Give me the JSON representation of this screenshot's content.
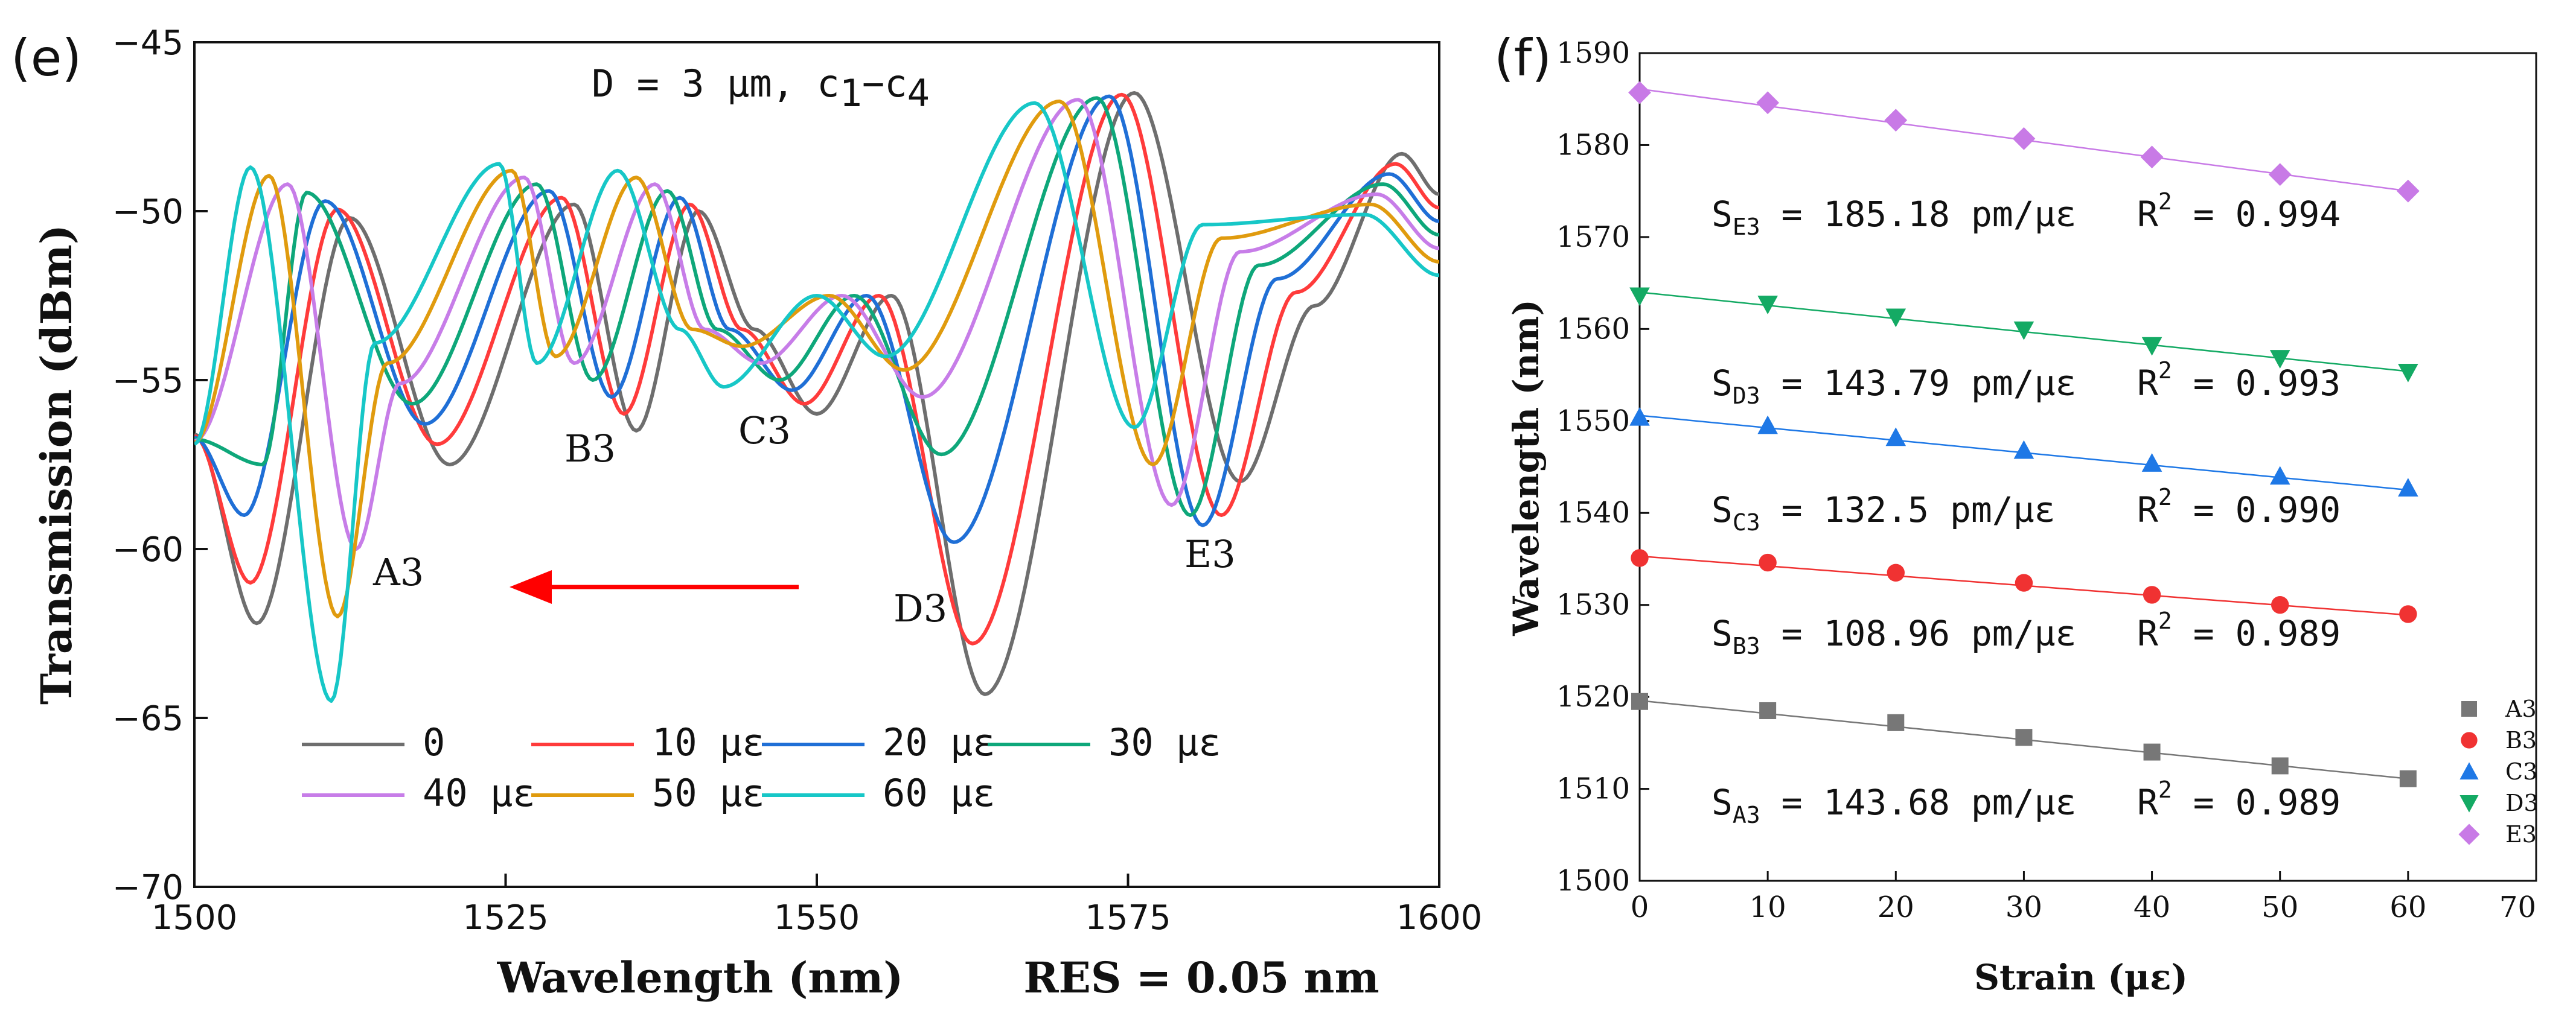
{
  "panel_e": {
    "label": "(e)",
    "title_main": "D = 3 μm,  c",
    "title_sub1": "1",
    "title_dash": "−c",
    "title_sub2": "4",
    "res_text": "RES = 0.05 nm",
    "dip_labels": [
      "A3",
      "B3",
      "C3",
      "D3",
      "E3"
    ],
    "colors": {
      "arrow": "#ff0000"
    },
    "chart_data": {
      "type": "line",
      "title": "D = 3 μm, c1−c4",
      "xlabel": "Wavelength (nm)",
      "ylabel": "Transmission (dBm)",
      "xlim": [
        1500,
        1600
      ],
      "ylim": [
        -70,
        -45
      ],
      "xticks": [
        "1500",
        "1525",
        "1550",
        "1575",
        "1600"
      ],
      "yticks": [
        "−45",
        "−50",
        "−55",
        "−60",
        "−65",
        "−70"
      ],
      "dip_positions_nm": {
        "A3": [
          1505,
          1504.5,
          1504,
          1505.5,
          1513,
          1511.5,
          1511
        ],
        "B3": [
          1535.5,
          1534.5,
          1533.5,
          1532,
          1530.5,
          1529,
          1527.5
        ],
        "C3": [
          1550,
          1549,
          1548,
          1547,
          1545.5,
          1544,
          1542.5
        ],
        "D3": [
          1563.5,
          1562.5,
          1561,
          1560,
          1558.5,
          1557,
          1555.5
        ],
        "E3": [
          1584,
          1582.5,
          1581,
          1580,
          1578.5,
          1577,
          1575.5
        ]
      },
      "dip_depths_dBm": {
        "A3": [
          -62.2,
          -61,
          -59,
          -57.5,
          -60,
          -62,
          -64.5
        ],
        "B3": [
          -56.5,
          -56,
          -55.5,
          -55,
          -54.5,
          -54.3,
          -54.5
        ],
        "C3": [
          -56,
          -55.7,
          -55.3,
          -55,
          -54.5,
          -54,
          -55.2
        ],
        "D3": [
          -64.3,
          -62.8,
          -59.8,
          -57.2,
          -55.5,
          -54.7,
          -54.3
        ],
        "E3": [
          -58,
          -59,
          -59.3,
          -59,
          -58.7,
          -57.5,
          -56.4
        ]
      },
      "peak_positions_nm": [
        [
          1512.5,
          1540.5,
          1575.5
        ],
        [
          1511.5,
          1539.8,
          1574.5
        ],
        [
          1510.5,
          1539,
          1573.5
        ],
        [
          1509,
          1538,
          1572.5
        ],
        [
          1507.5,
          1537,
          1571
        ],
        [
          1506,
          1535.5,
          1569.5
        ],
        [
          1504.5,
          1534,
          1567.5
        ]
      ],
      "series": [
        {
          "name": "0",
          "color": "#6e6e6e",
          "shift_nm": 0,
          "dip_scale": 1.0
        },
        {
          "name": "10 με",
          "color": "#ff3b3b",
          "shift_nm": -1.0,
          "dip_scale": 0.95
        },
        {
          "name": "20 με",
          "color": "#1f6fd6",
          "shift_nm": -2.2,
          "dip_scale": 0.88
        },
        {
          "name": "30 με",
          "color": "#0ea77a",
          "shift_nm": -3.5,
          "dip_scale": 0.82
        },
        {
          "name": "40 με",
          "color": "#c77de8",
          "shift_nm": -5.0,
          "dip_scale": 0.8
        },
        {
          "name": "50 με",
          "color": "#e09b0e",
          "shift_nm": -6.5,
          "dip_scale": 0.84
        },
        {
          "name": "60 με",
          "color": "#17c7c7",
          "shift_nm": -8.0,
          "dip_scale": 0.92
        }
      ],
      "legend_labels": [
        "0",
        "10  με",
        "20  με",
        "30  με",
        "40  με",
        "50  με",
        "60  με"
      ],
      "arrow_annotation": "red arrow from 1549 nm to 1505 nm at −61.2 dBm (shift direction)"
    }
  },
  "panel_f": {
    "label": "(f)",
    "equations": [
      {
        "pre": "S",
        "sub": "E3",
        "post": " = 185.18 pm/με",
        "r": "R",
        "sup": "2",
        "rpost": " = 0.994"
      },
      {
        "pre": "S",
        "sub": "D3",
        "post": " = 143.79 pm/με",
        "r": "R",
        "sup": "2",
        "rpost": " = 0.993"
      },
      {
        "pre": "S",
        "sub": "C3",
        "post": " = 132.5 pm/με",
        "r": "R",
        "sup": "2",
        "rpost": " = 0.990"
      },
      {
        "pre": "S",
        "sub": "B3",
        "post": " = 108.96 pm/με",
        "r": "R",
        "sup": "2",
        "rpost": " = 0.989"
      },
      {
        "pre": "S",
        "sub": "A3",
        "post": " = 143.68 pm/με",
        "r": "R",
        "sup": "2",
        "rpost": " = 0.989"
      }
    ],
    "chart_data": {
      "type": "scatter",
      "xlabel": "Strain (με)",
      "ylabel": "Wavelength (nm)",
      "xlim": [
        0,
        70
      ],
      "ylim": [
        1500,
        1590
      ],
      "xticks": [
        "0",
        "10",
        "20",
        "30",
        "40",
        "50",
        "60",
        "70"
      ],
      "yticks": [
        "1500",
        "1510",
        "1520",
        "1530",
        "1540",
        "1550",
        "1560",
        "1570",
        "1580",
        "1590"
      ],
      "x": [
        0,
        10,
        20,
        30,
        40,
        50,
        60
      ],
      "series": [
        {
          "name": "A3",
          "marker": "square",
          "color": "#777777",
          "values": [
            1519.5,
            1518.5,
            1517.2,
            1515.6,
            1514.0,
            1512.5,
            1511.1
          ],
          "fit": [
            1519.6,
            1511.1
          ]
        },
        {
          "name": "B3",
          "marker": "circle",
          "color": "#f03232",
          "values": [
            1535.1,
            1534.6,
            1533.5,
            1532.4,
            1531.1,
            1530.0,
            1529.0
          ],
          "fit": [
            1535.3,
            1528.9
          ]
        },
        {
          "name": "C3",
          "marker": "triangle-up",
          "color": "#1e78e6",
          "values": [
            1550.4,
            1549.5,
            1548.2,
            1546.8,
            1545.4,
            1544.0,
            1542.7
          ],
          "fit": [
            1550.6,
            1542.5
          ]
        },
        {
          "name": "D3",
          "marker": "triangle-down",
          "color": "#14aa64",
          "values": [
            1563.6,
            1562.7,
            1561.3,
            1559.9,
            1558.2,
            1556.8,
            1555.3
          ],
          "fit": [
            1564.0,
            1555.4
          ]
        },
        {
          "name": "E3",
          "marker": "diamond",
          "color": "#c87ae6",
          "values": [
            1585.7,
            1584.6,
            1582.7,
            1580.7,
            1578.7,
            1576.8,
            1575.0
          ],
          "fit": [
            1586.1,
            1575.0
          ]
        }
      ]
    }
  }
}
